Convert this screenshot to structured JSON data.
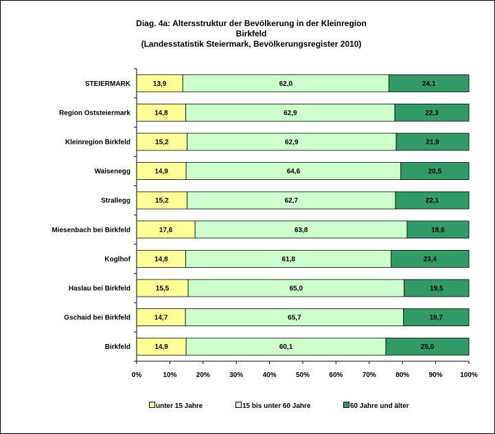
{
  "chart_data": {
    "type": "bar",
    "orientation": "horizontal",
    "stacked": true,
    "percent": true,
    "title": [
      "Diag. 4a: Altersstruktur  der Bevölkerung  in der Kleinregion",
      "Birkfeld",
      "(Landesstatistik  Steiermark,  Bevölkerungsregister  2010)"
    ],
    "categories": [
      "STEIERMARK",
      "Region Oststeiermark",
      "Kleinregion Birkfeld",
      "Waisenegg",
      "Strallegg",
      "Miesenbach bei Birkfeld",
      "Koglhof",
      "Haslau bei Birkfeld",
      "Gschaid bei Birkfeld",
      "Birkfeld"
    ],
    "series": [
      {
        "name": "unter 15 Jahre",
        "color": "#ffff99",
        "values": [
          13.9,
          14.8,
          15.2,
          14.9,
          15.2,
          17.6,
          14.8,
          15.5,
          14.7,
          14.9
        ],
        "labels": [
          "13,9",
          "14,8",
          "15,2",
          "14,9",
          "15,2",
          "17,6",
          "14,8",
          "15,5",
          "14,7",
          "14,9"
        ]
      },
      {
        "name": "15 bis unter 60 Jahre",
        "color": "#ccffcc",
        "values": [
          62.0,
          62.9,
          62.9,
          64.6,
          62.7,
          63.8,
          61.8,
          65.0,
          65.7,
          60.1
        ],
        "labels": [
          "62,0",
          "62,9",
          "62,9",
          "64,6",
          "62,7",
          "63,8",
          "61,8",
          "65,0",
          "65,7",
          "60,1"
        ]
      },
      {
        "name": "60 Jahre und älter",
        "color": "#339966",
        "values": [
          24.1,
          22.3,
          21.9,
          20.5,
          22.1,
          18.6,
          23.4,
          19.5,
          19.7,
          25.0
        ],
        "labels": [
          "24,1",
          "22,3",
          "21,9",
          "20,5",
          "22,1",
          "18,6",
          "23,4",
          "19,5",
          "19,7",
          "25,0"
        ]
      }
    ],
    "xlim": [
      0,
      100
    ],
    "xticks": [
      "0%",
      "10%",
      "20%",
      "30%",
      "40%",
      "50%",
      "60%",
      "70%",
      "80%",
      "90%",
      "100%"
    ],
    "grid": false,
    "legend_position": "bottom"
  }
}
